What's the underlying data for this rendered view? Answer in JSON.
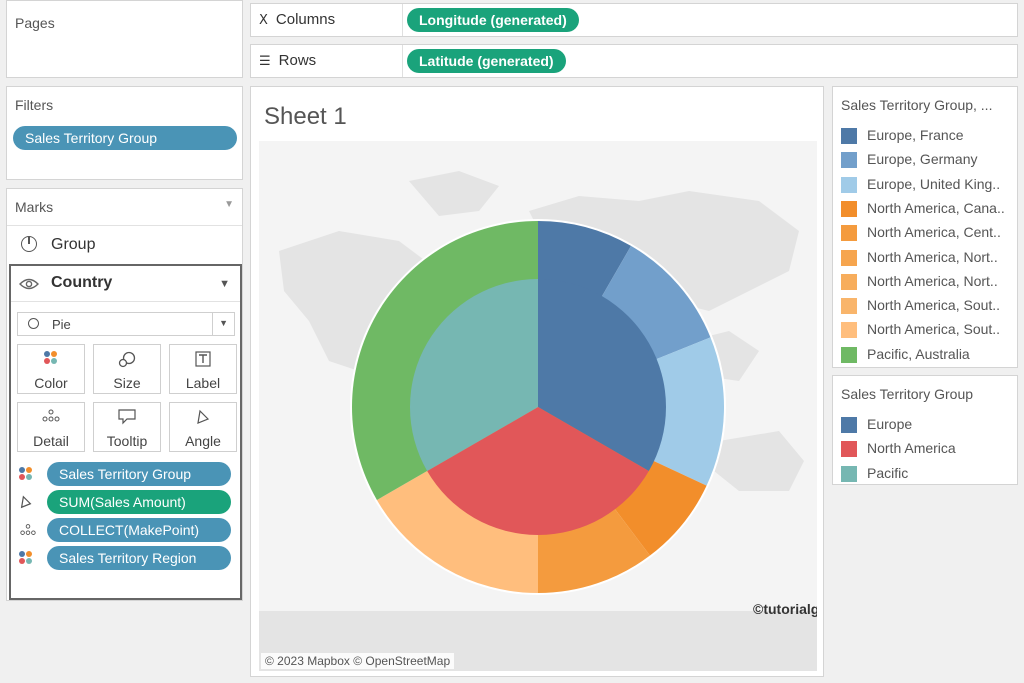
{
  "pages": {
    "title": "Pages"
  },
  "columns": {
    "label": "Columns",
    "pill": "Longitude (generated)"
  },
  "rows": {
    "label": "Rows",
    "pill": "Latitude (generated)"
  },
  "filters": {
    "title": "Filters",
    "pill": "Sales Territory Group"
  },
  "marks": {
    "title": "Marks",
    "layers": [
      {
        "label": "Group"
      },
      {
        "label": "Country"
      }
    ],
    "mark_type": "Pie",
    "buttons": [
      "Color",
      "Size",
      "Label",
      "Detail",
      "Tooltip",
      "Angle"
    ],
    "encodings": [
      {
        "icon": "color-dots-icon",
        "label": "Sales Territory Group",
        "color": "#4a94b6"
      },
      {
        "icon": "angle-icon",
        "label": "SUM(Sales Amount)",
        "color": "#1aa37b"
      },
      {
        "icon": "detail-dots-icon",
        "label": "COLLECT(MakePoint)",
        "color": "#4a94b6"
      },
      {
        "icon": "color-dots-icon",
        "label": "Sales Territory Region",
        "color": "#4a94b6"
      }
    ]
  },
  "sheet": {
    "title": "Sheet 1",
    "map_credit": "© 2023 Mapbox © OpenStreetMap",
    "watermark": "©tutorialgateway.org"
  },
  "legend_region": {
    "title": "Sales Territory Group, ...",
    "items": [
      {
        "label": "Europe, France",
        "color": "#4e79a7"
      },
      {
        "label": "Europe, Germany",
        "color": "#729fcb"
      },
      {
        "label": "Europe, United King..",
        "color": "#a0cbe8"
      },
      {
        "label": "North America, Cana..",
        "color": "#f28e2b"
      },
      {
        "label": "North America, Cent..",
        "color": "#f49b3e"
      },
      {
        "label": "North America, Nort..",
        "color": "#f6a54e"
      },
      {
        "label": "North America, Nort..",
        "color": "#f7ad5c"
      },
      {
        "label": "North America, Sout..",
        "color": "#f9b56b"
      },
      {
        "label": "North America, Sout..",
        "color": "#ffbe7d"
      },
      {
        "label": "Pacific, Australia",
        "color": "#6fb964"
      }
    ]
  },
  "legend_group": {
    "title": "Sales Territory Group",
    "items": [
      {
        "label": "Europe",
        "color": "#4e79a7"
      },
      {
        "label": "North America",
        "color": "#e15759"
      },
      {
        "label": "Pacific",
        "color": "#76b7b2"
      }
    ]
  }
}
